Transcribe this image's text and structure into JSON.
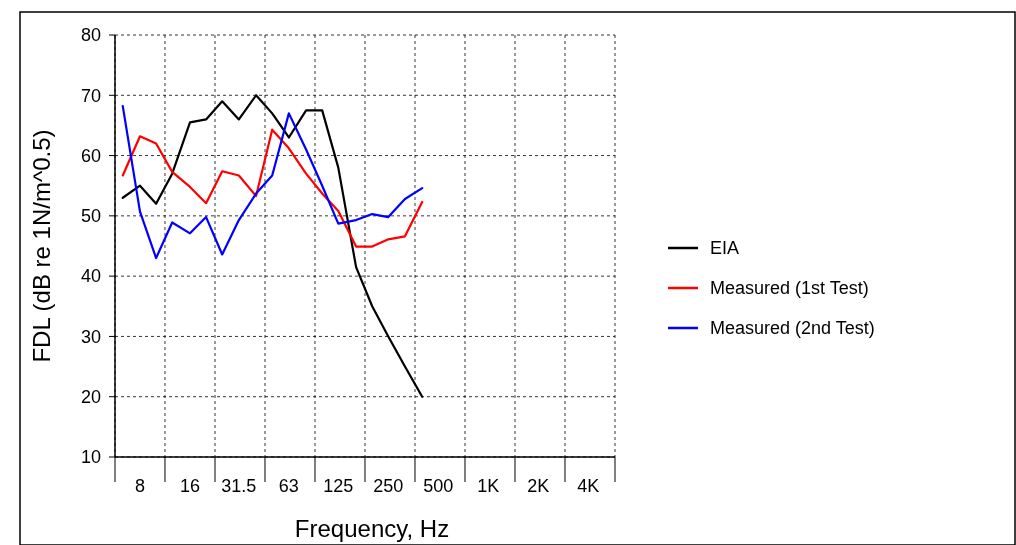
{
  "chart_data": {
    "type": "line",
    "xlabel": "Frequency, Hz",
    "ylabel": "FDL (dB re 1N/m^0.5)",
    "xlim": [
      5.657,
      5793
    ],
    "log": "x",
    "xticks": [
      {
        "value": 5.657,
        "label": null
      },
      8,
      {
        "value": 11.31,
        "label": null
      },
      16,
      {
        "value": 22.63,
        "label": null
      },
      31.5,
      {
        "value": 45.25,
        "label": null
      },
      63,
      {
        "value": 90.51,
        "label": null
      },
      125,
      {
        "value": 181,
        "label": null
      },
      250,
      {
        "value": 362,
        "label": null
      },
      500,
      {
        "value": 724,
        "label": null
      },
      {
        "value": 1000,
        "label": "1K"
      },
      {
        "value": 1448,
        "label": null
      },
      {
        "value": 2000,
        "label": "2K"
      },
      {
        "value": 2896,
        "label": null
      },
      {
        "value": 4000,
        "label": "4K"
      },
      {
        "value": 5793,
        "label": null
      }
    ],
    "ylim": [
      10,
      80
    ],
    "yticks": [
      10,
      20,
      30,
      40,
      50,
      60,
      70,
      80
    ],
    "x": [
      6.3,
      8,
      10,
      12.5,
      16,
      20,
      25,
      31.5,
      40,
      50,
      63,
      80,
      100,
      125,
      160,
      200,
      250,
      315,
      400
    ],
    "series": [
      {
        "name": "EIA",
        "color": "#000000",
        "values": [
          53,
          55,
          52,
          57,
          65.5,
          66,
          69,
          66,
          70,
          67,
          63,
          67.5,
          67.5,
          58,
          41.5,
          35,
          30,
          25,
          20
        ]
      },
      {
        "name": "Measured (1st Test)",
        "color": "#ff0000",
        "values": [
          56.7,
          63.2,
          62,
          57.3,
          54.8,
          52.1,
          57.4,
          56.7,
          53.3,
          64.3,
          61.2,
          57,
          53.7,
          50.8,
          44.9,
          44.9,
          46.1,
          46.6,
          52.3
        ]
      },
      {
        "name": "Measured (2nd Test)",
        "color": "#0000ff",
        "values": [
          68.2,
          50.7,
          43,
          48.9,
          47.1,
          49.8,
          43.6,
          49.3,
          53.7,
          56.7,
          67,
          61,
          55,
          48.7,
          49.3,
          50.3,
          49.8,
          52.8,
          54.6
        ]
      }
    ],
    "grid": true,
    "legend": "right",
    "marker": "none",
    "line_style": "solid"
  }
}
